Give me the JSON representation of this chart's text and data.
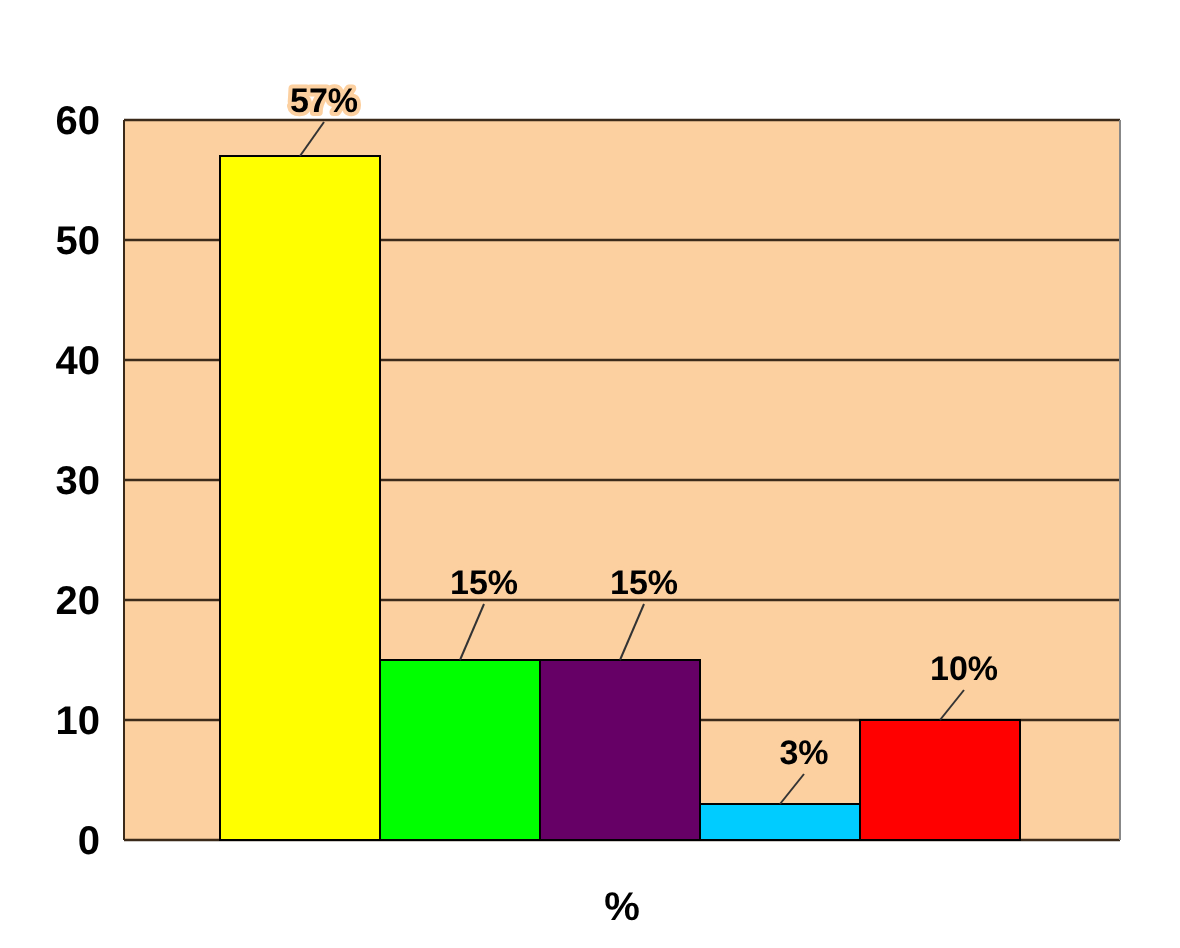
{
  "chart_data": {
    "type": "bar",
    "categories": [
      null,
      null,
      null,
      null,
      null
    ],
    "values": [
      57,
      15,
      15,
      3,
      10
    ],
    "colors": [
      "#ffff00",
      "#00ff00",
      "#660066",
      "#00ccff",
      "#ff0000"
    ],
    "value_labels": [
      "57%",
      "15%",
      "15%",
      "3%",
      "10%"
    ],
    "xlabel": "%",
    "ylim": [
      0,
      60
    ],
    "yticks": [
      0,
      10,
      20,
      30,
      40,
      50,
      60
    ],
    "grid": "y"
  }
}
